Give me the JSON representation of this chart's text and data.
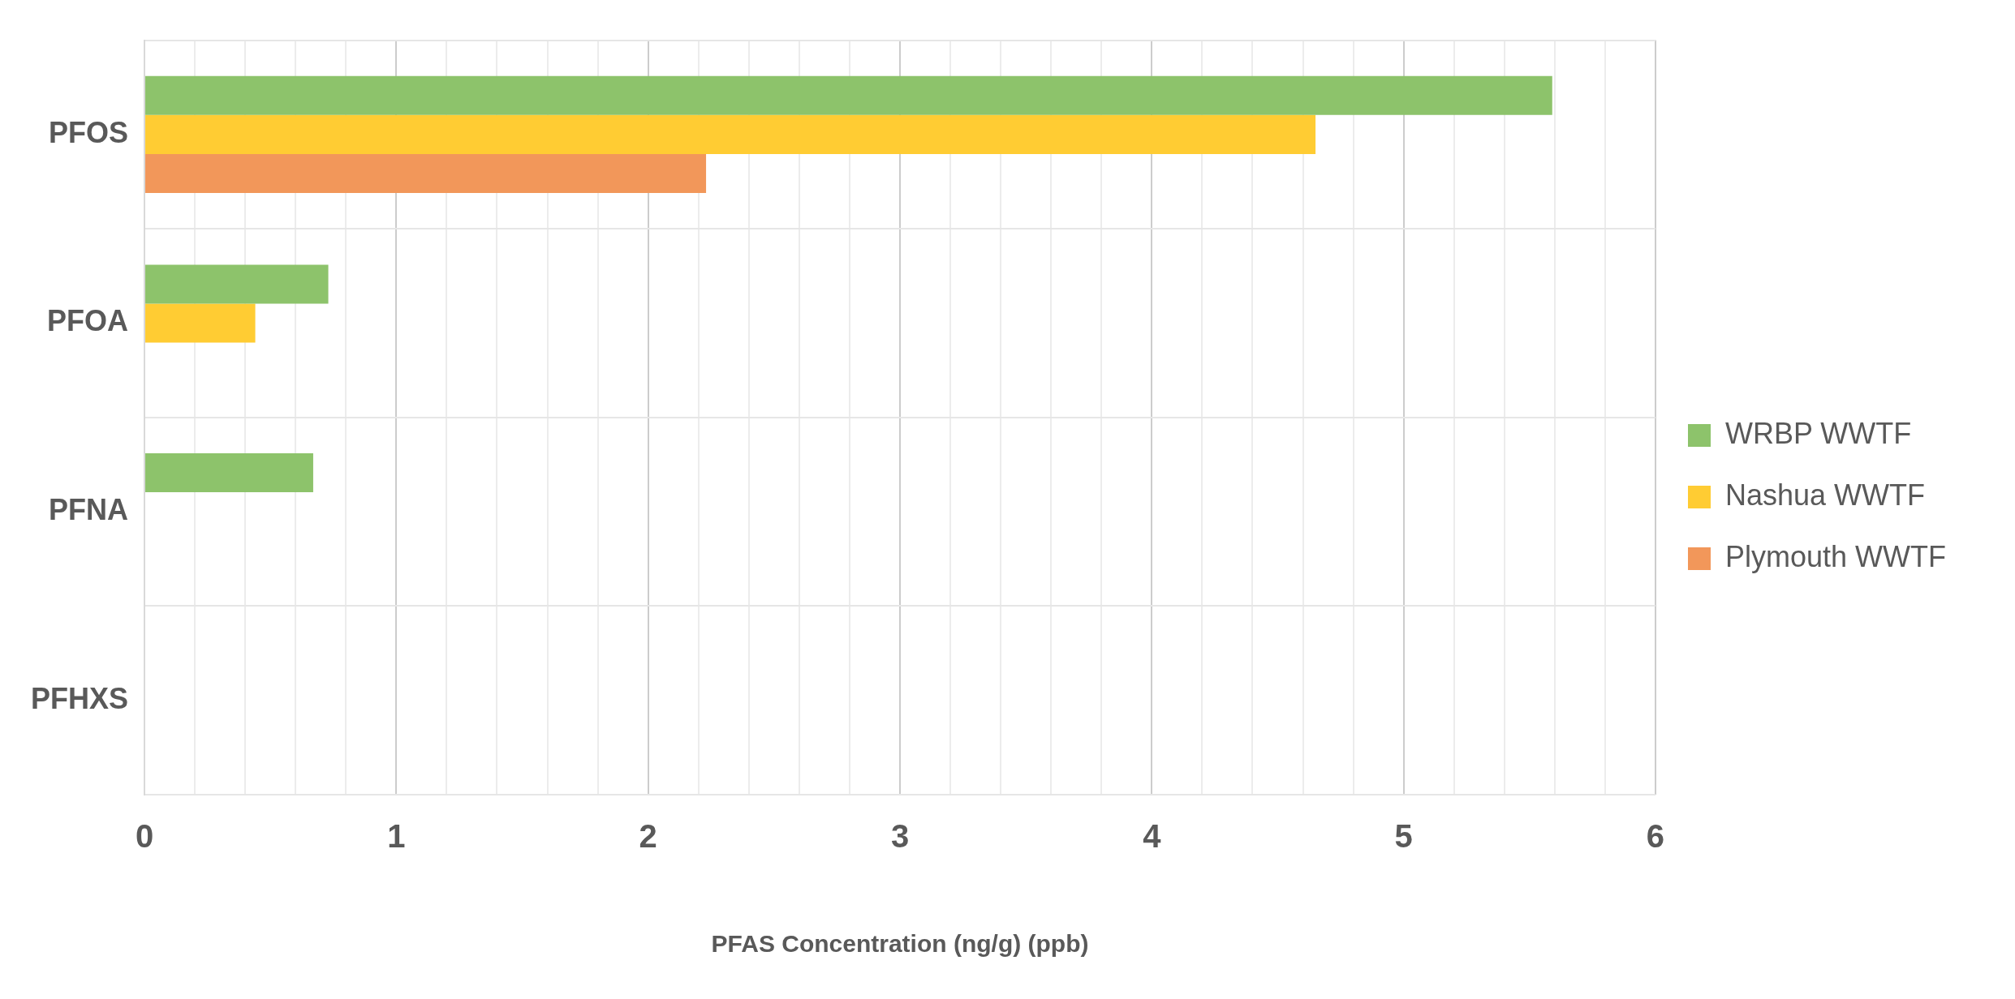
{
  "chart_data": {
    "type": "bar",
    "orientation": "horizontal",
    "xlabel": "PFAS Concentration (ng/g) (ppb)",
    "categories": [
      "PFOS",
      "PFOA",
      "PFNA",
      "PFHXS"
    ],
    "series": [
      {
        "name": "WRBP WWTF",
        "color": "#8dc36b",
        "values": [
          5.59,
          0.73,
          0.67,
          null
        ]
      },
      {
        "name": "Nashua WWTF",
        "color": "#ffcc33",
        "values": [
          4.65,
          0.44,
          null,
          null
        ]
      },
      {
        "name": "Plymouth WWTF",
        "color": "#f2975a",
        "values": [
          2.23,
          null,
          null,
          null
        ]
      }
    ],
    "xlim": [
      0,
      6
    ],
    "xticks": [
      0,
      {
        "value": 0.2,
        "label": null
      },
      {
        "value": 0.4,
        "label": null
      },
      {
        "value": 0.6,
        "label": null
      },
      {
        "value": 0.8,
        "label": null
      },
      1,
      {
        "value": 1.2,
        "label": null
      },
      {
        "value": 1.4,
        "label": null
      },
      {
        "value": 1.6,
        "label": null
      },
      {
        "value": 1.8,
        "label": null
      },
      2,
      {
        "value": 2.2,
        "label": null
      },
      {
        "value": 2.4,
        "label": null
      },
      {
        "value": 2.6,
        "label": null
      },
      {
        "value": 2.8,
        "label": null
      },
      3,
      {
        "value": 3.2,
        "label": null
      },
      {
        "value": 3.4,
        "label": null
      },
      {
        "value": 3.6,
        "label": null
      },
      {
        "value": 3.8,
        "label": null
      },
      4,
      {
        "value": 4.2,
        "label": null
      },
      {
        "value": 4.4,
        "label": null
      },
      {
        "value": 4.6,
        "label": null
      },
      {
        "value": 4.8,
        "label": null
      },
      5,
      {
        "value": 5.2,
        "label": null
      },
      {
        "value": 5.4,
        "label": null
      },
      {
        "value": 5.6,
        "label": null
      },
      {
        "value": 5.8,
        "label": null
      },
      6
    ],
    "grid": true,
    "legend": "right"
  }
}
